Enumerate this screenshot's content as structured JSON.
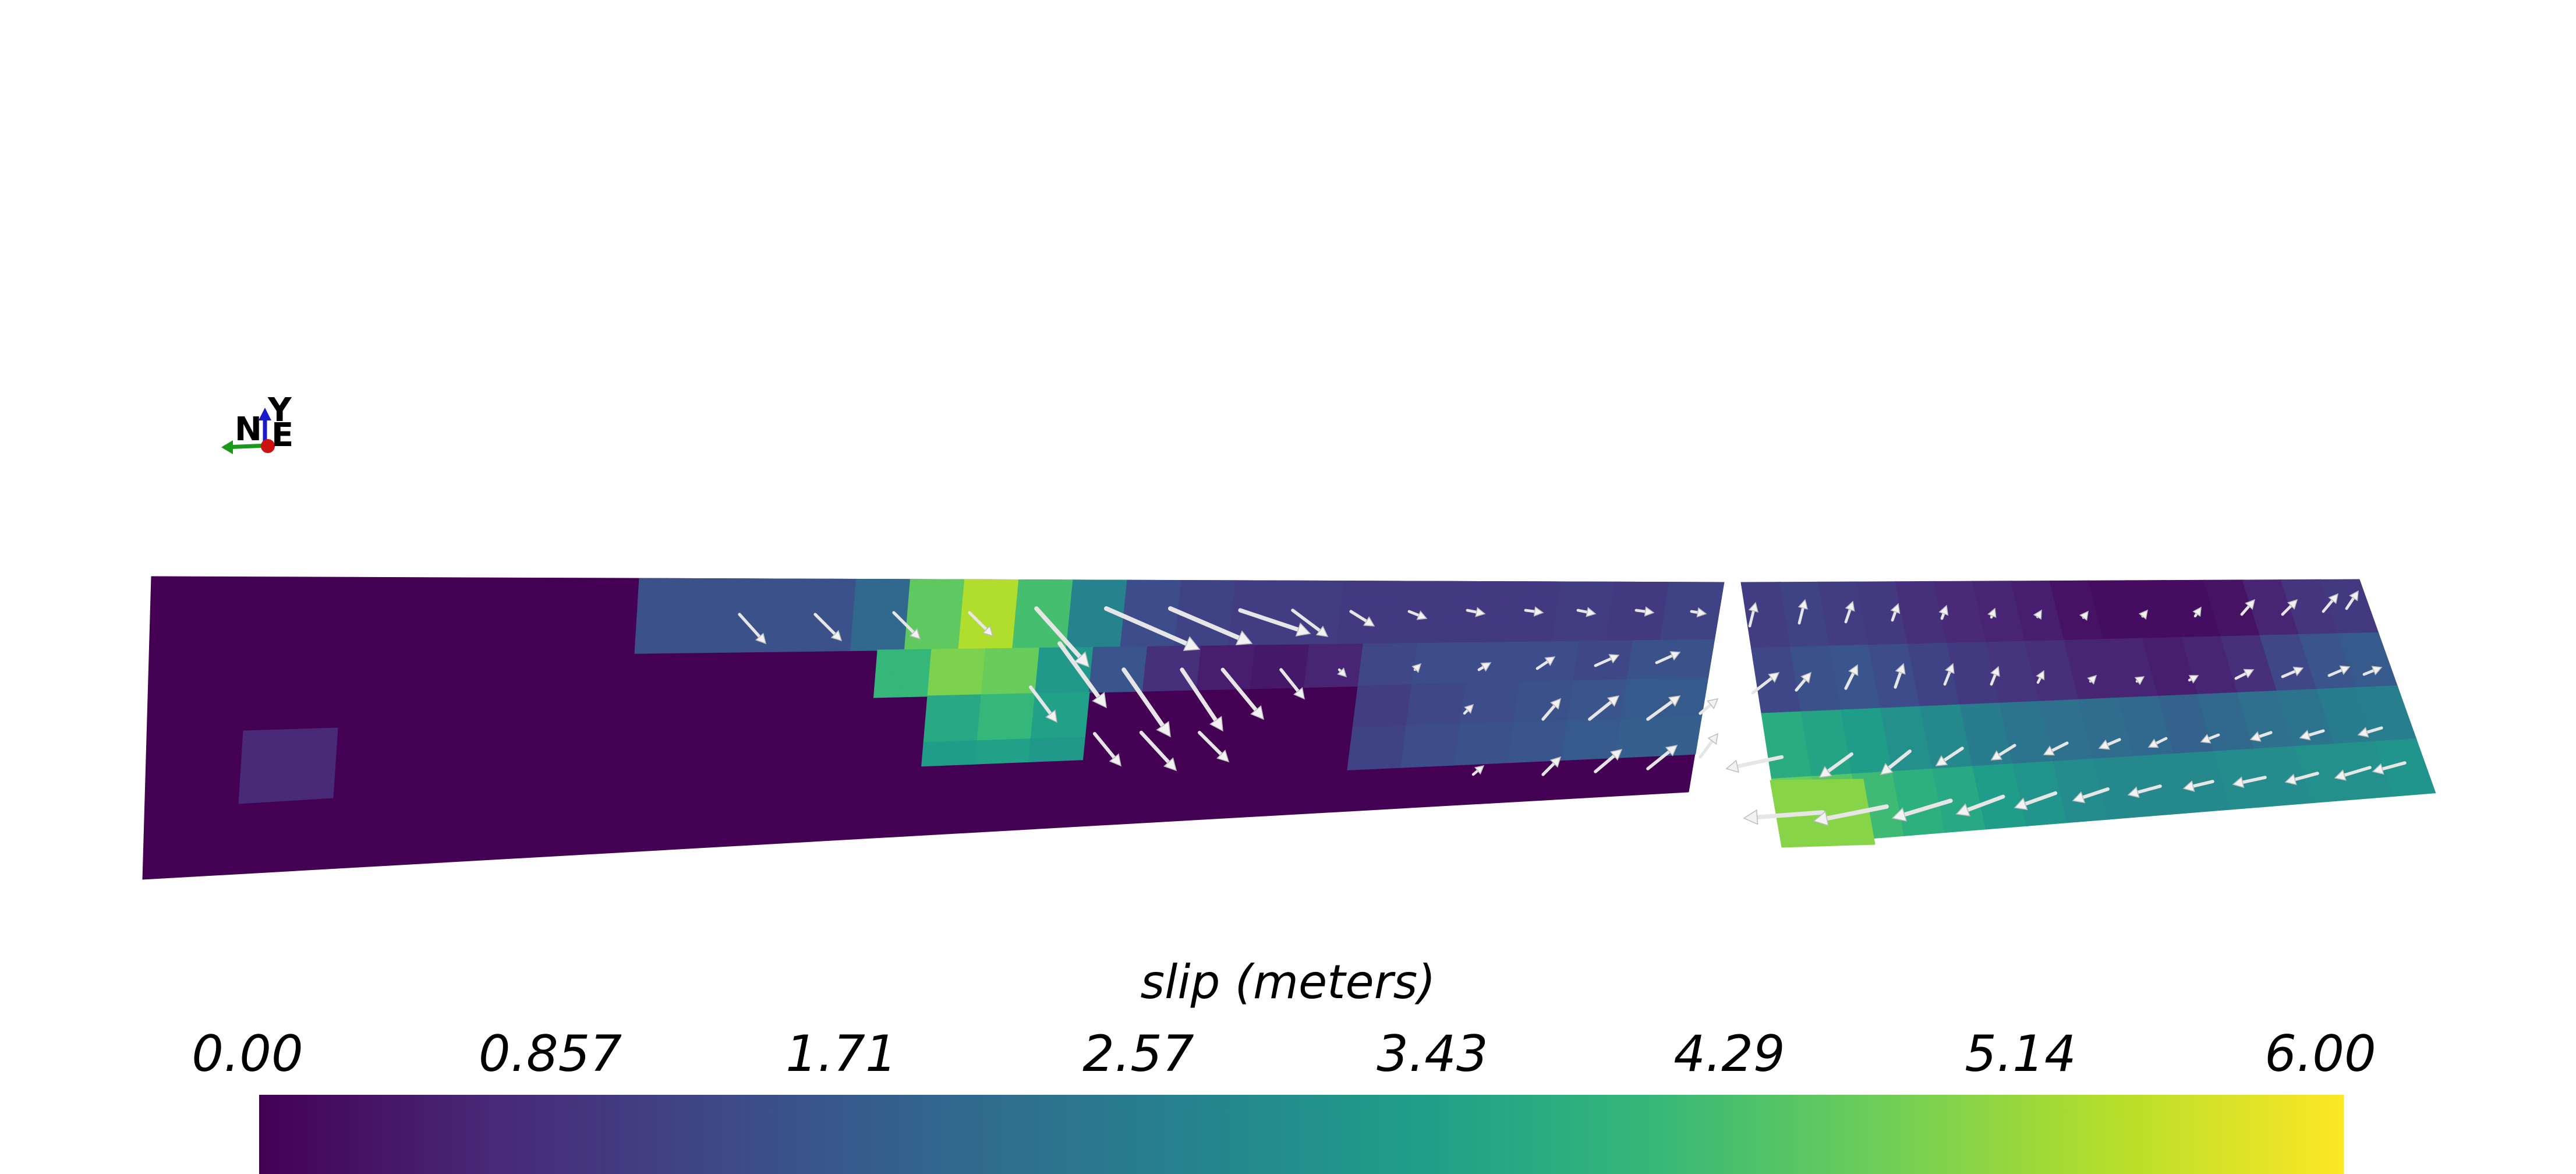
{
  "colorbar": {
    "title": "slip (meters)",
    "ticks": [
      "0.00",
      "0.857",
      "1.71",
      "2.57",
      "3.43",
      "4.29",
      "5.14",
      "6.00"
    ],
    "range": [
      0,
      6
    ],
    "colormap": "viridis",
    "colors": [
      "#440154",
      "#482878",
      "#3e4989",
      "#31688e",
      "#26828e",
      "#1f9e89",
      "#35b779",
      "#6ece58",
      "#b5de2b",
      "#fde725"
    ]
  },
  "orientation_axes": {
    "labels": [
      "N",
      "Y",
      "E"
    ],
    "colors": {
      "north": "#1a9a1a",
      "up": "#1a1acc",
      "east": "#cc1111"
    }
  },
  "fault": {
    "background_slip": 0.0,
    "arrow_color": "#e6e6e6"
  }
}
